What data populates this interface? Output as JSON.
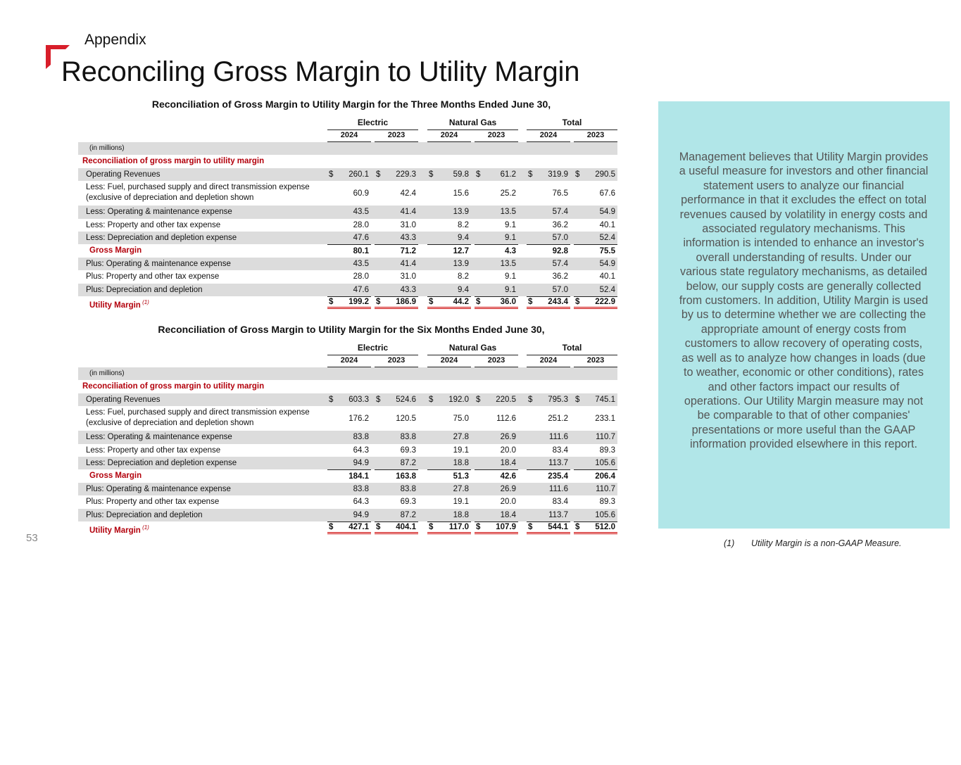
{
  "header": {
    "section": "Appendix",
    "title": "Reconciling Gross Margin to Utility Margin"
  },
  "page_number": "53",
  "colors": {
    "accent": "#d81e2a",
    "panel": "#b1e6e8",
    "label_red": "#b3000c"
  },
  "columns": {
    "groups": [
      "Electric",
      "Natural Gas",
      "Total"
    ],
    "years": [
      "2024",
      "2023",
      "2024",
      "2023",
      "2024",
      "2023"
    ]
  },
  "tables": [
    {
      "title": "Reconciliation of Gross Margin to Utility Margin for the Three Months Ended June 30,",
      "units": "(in millions)",
      "section_label": "Reconciliation of gross margin to utility margin",
      "rows": [
        {
          "label": "Operating Revenues",
          "values": [
            "260.1",
            "229.3",
            "59.8",
            "61.2",
            "319.9",
            "290.5"
          ],
          "dollar": true
        },
        {
          "label": "Less:  Fuel, purchased supply and direct transmission expense (exclusive of depreciation and depletion shown",
          "values": [
            "60.9",
            "42.4",
            "15.6",
            "25.2",
            "76.5",
            "67.6"
          ]
        },
        {
          "label": "Less:  Operating & maintenance expense",
          "values": [
            "43.5",
            "41.4",
            "13.9",
            "13.5",
            "57.4",
            "54.9"
          ]
        },
        {
          "label": "Less:  Property and other tax expense",
          "values": [
            "28.0",
            "31.0",
            "8.2",
            "9.1",
            "36.2",
            "40.1"
          ]
        },
        {
          "label": "Less:  Depreciation and depletion expense",
          "values": [
            "47.6",
            "43.3",
            "9.4",
            "9.1",
            "57.0",
            "52.4"
          ]
        },
        {
          "label": "Gross Margin",
          "values": [
            "80.1",
            "71.2",
            "12.7",
            "4.3",
            "92.8",
            "75.5"
          ]
        },
        {
          "label": "Plus:  Operating & maintenance expense",
          "values": [
            "43.5",
            "41.4",
            "13.9",
            "13.5",
            "57.4",
            "54.9"
          ]
        },
        {
          "label": "Plus:  Property and other tax expense",
          "values": [
            "28.0",
            "31.0",
            "8.2",
            "9.1",
            "36.2",
            "40.1"
          ]
        },
        {
          "label": "Plus:  Depreciation and depletion",
          "values": [
            "47.6",
            "43.3",
            "9.4",
            "9.1",
            "57.0",
            "52.4"
          ]
        },
        {
          "label": "Utility Margin",
          "note": "(1)",
          "values": [
            "199.2",
            "186.9",
            "44.2",
            "36.0",
            "243.4",
            "222.9"
          ],
          "dollar": true
        }
      ]
    },
    {
      "title": "Reconciliation of Gross Margin to Utility Margin for the Six Months Ended June 30,",
      "units": "(in millions)",
      "section_label": "Reconciliation of gross margin to utility margin",
      "rows": [
        {
          "label": "Operating Revenues",
          "values": [
            "603.3",
            "524.6",
            "192.0",
            "220.5",
            "795.3",
            "745.1"
          ],
          "dollar": true
        },
        {
          "label": "Less:  Fuel, purchased supply and direct transmission expense (exclusive of depreciation and depletion shown",
          "values": [
            "176.2",
            "120.5",
            "75.0",
            "112.6",
            "251.2",
            "233.1"
          ]
        },
        {
          "label": "Less:  Operating & maintenance expense",
          "values": [
            "83.8",
            "83.8",
            "27.8",
            "26.9",
            "111.6",
            "110.7"
          ]
        },
        {
          "label": "Less:  Property and other tax expense",
          "values": [
            "64.3",
            "69.3",
            "19.1",
            "20.0",
            "83.4",
            "89.3"
          ]
        },
        {
          "label": "Less:  Depreciation and depletion expense",
          "values": [
            "94.9",
            "87.2",
            "18.8",
            "18.4",
            "113.7",
            "105.6"
          ]
        },
        {
          "label": "Gross Margin",
          "values": [
            "184.1",
            "163.8",
            "51.3",
            "42.6",
            "235.4",
            "206.4"
          ]
        },
        {
          "label": "Plus:  Operating & maintenance expense",
          "values": [
            "83.8",
            "83.8",
            "27.8",
            "26.9",
            "111.6",
            "110.7"
          ]
        },
        {
          "label": "Plus:  Property and other tax expense",
          "values": [
            "64.3",
            "69.3",
            "19.1",
            "20.0",
            "83.4",
            "89.3"
          ]
        },
        {
          "label": "Plus:  Depreciation and depletion",
          "values": [
            "94.9",
            "87.2",
            "18.8",
            "18.4",
            "113.7",
            "105.6"
          ]
        },
        {
          "label": "Utility Margin",
          "note": "(1)",
          "values": [
            "427.1",
            "404.1",
            "117.0",
            "107.9",
            "544.1",
            "512.0"
          ],
          "dollar": true
        }
      ]
    }
  ],
  "sidebar": {
    "text": "Management believes that Utility Margin provides a useful measure for investors and other financial statement users to analyze our financial performance in that it excludes the effect on total revenues caused by volatility in energy costs and associated regulatory mechanisms. This information is intended to enhance an investor's overall understanding of results. Under our various state regulatory mechanisms, as detailed below, our supply costs are generally collected from customers. In addition, Utility Margin is used by us to determine whether we are collecting the appropriate amount of energy costs from customers to allow recovery of operating costs, as well as to analyze how changes in loads (due to weather, economic or other conditions), rates and other factors impact our results of operations. Our Utility Margin measure may not be comparable to that of other companies' presentations or more useful than the GAAP information provided elsewhere in this report."
  },
  "footnote": {
    "number": "(1)",
    "text": "Utility Margin is a non-GAAP Measure."
  },
  "dollar_sign": "$"
}
